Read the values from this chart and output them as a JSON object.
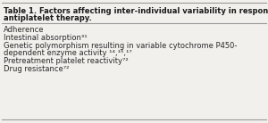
{
  "title_bold": "Table 1.",
  "title_rest": " Factors affecting inter-individual variability in response to antiplatelet therapy.",
  "title_line1": "Table 1. Factors affecting inter-individual variability in response to",
  "title_line2": "antiplatelet therapy.",
  "rows": [
    "Adherence",
    "Intestinal absorption³¹",
    "Genetic polymorphism resulting in variable cytochrome P450-",
    "dependent enzyme activity ¹⁴,¹⁵,¹⁷",
    "Pretreatment platelet reactivity⁷²",
    "Drug resistance⁷²"
  ],
  "bg_color": "#f2f0ed",
  "border_color": "#999999",
  "title_fontsize": 6.0,
  "row_fontsize": 6.0,
  "title_color": "#1a1a1a",
  "row_color": "#2a2a2a"
}
